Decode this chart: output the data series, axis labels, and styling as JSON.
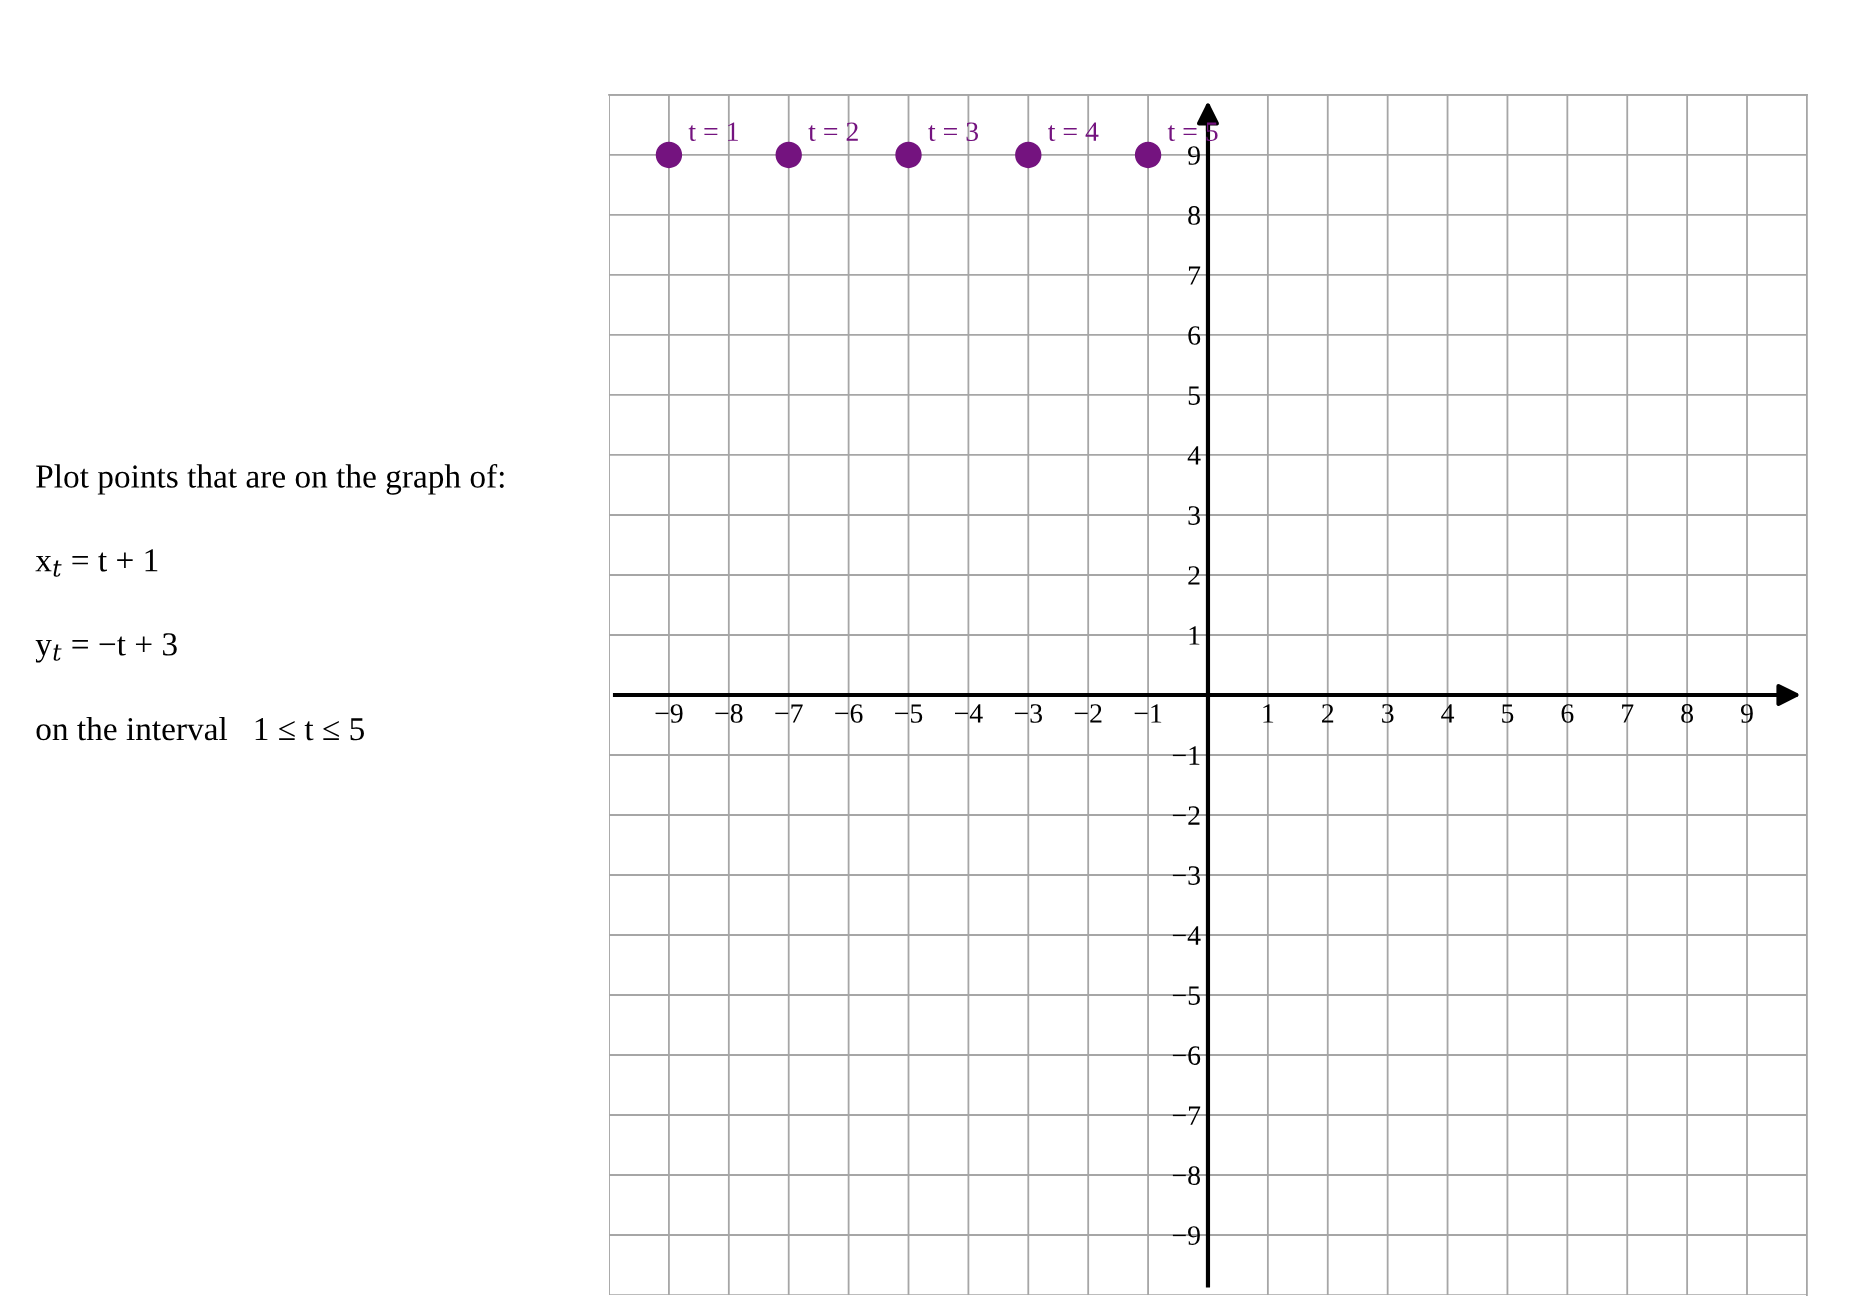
{
  "chart_data": {
    "type": "scatter",
    "x": [
      -9,
      -7,
      -5,
      -3,
      -1
    ],
    "values": [
      9,
      9,
      9,
      9,
      9
    ],
    "color": "#74137f",
    "marker": "circle",
    "xlim": [
      -10,
      10
    ],
    "ylim": [
      -10,
      10
    ],
    "xticks": [
      {
        "value": -10,
        "label": null
      },
      -9,
      -8,
      -7,
      -6,
      -5,
      -4,
      -3,
      -2,
      -1,
      1,
      2,
      3,
      4,
      5,
      6,
      7,
      8,
      9,
      {
        "value": 10,
        "label": null
      }
    ],
    "yticks": [
      {
        "value": -10,
        "label": null
      },
      -9,
      -8,
      -7,
      -6,
      -5,
      -4,
      -3,
      -2,
      -1,
      1,
      2,
      3,
      4,
      5,
      6,
      7,
      8,
      9,
      {
        "value": 10,
        "label": null
      }
    ],
    "grid": true,
    "annotations": [
      {
        "text": "t = 1",
        "x": -9,
        "y": 9
      },
      {
        "text": "t = 2",
        "x": -7,
        "y": 9
      },
      {
        "text": "t = 3",
        "x": -5,
        "y": 9
      },
      {
        "text": "t = 4",
        "x": -3,
        "y": 9
      },
      {
        "text": "t = 5",
        "x": -1,
        "y": 9
      },
      "Plot points that are on the graph of:",
      "x$_{t}$ = t + 1",
      "y$_{t}$ = −t + 3",
      "on the interval   1 ≤ t ≤ 5"
    ]
  }
}
